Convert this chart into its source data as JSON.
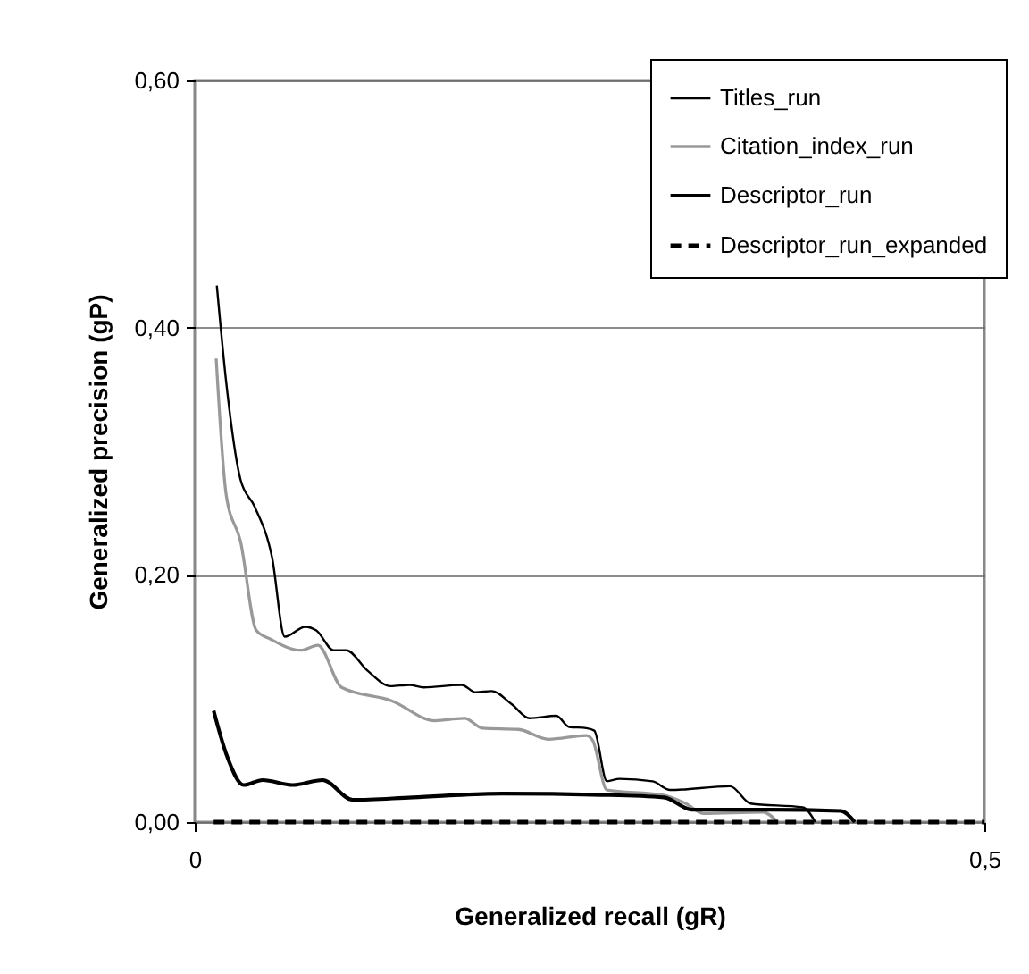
{
  "chart_data": {
    "type": "line",
    "xlabel": "Generalized recall (gR)",
    "ylabel": "Generalized precision (gP)",
    "xlim": [
      0,
      0.5
    ],
    "xticks": [
      {
        "value": 0,
        "label": "0"
      },
      {
        "value": 0.5,
        "label": "0,5"
      }
    ],
    "ylim": [
      0,
      0.6
    ],
    "yticks": [
      {
        "value": 0,
        "label": "0,00"
      },
      {
        "value": 0.2,
        "label": "0,20"
      },
      {
        "value": 0.4,
        "label": "0,40"
      },
      {
        "value": 0.6,
        "label": "0,60"
      }
    ],
    "grid": "y",
    "legend": "top right",
    "marker": "none",
    "series": [
      {
        "name": "Titles_run",
        "color": "#000000",
        "line_style": "solid",
        "x": [
          0.014,
          0.02,
          0.029,
          0.038,
          0.049,
          0.057,
          0.07,
          0.077,
          0.088,
          0.096,
          0.109,
          0.124,
          0.136,
          0.145,
          0.169,
          0.178,
          0.188,
          0.201,
          0.212,
          0.229,
          0.237,
          0.248,
          0.253,
          0.261,
          0.269,
          0.29,
          0.301,
          0.339,
          0.352,
          0.385,
          0.393
        ],
        "values": [
          0.434,
          0.355,
          0.277,
          0.255,
          0.214,
          0.15,
          0.158,
          0.155,
          0.139,
          0.139,
          0.123,
          0.11,
          0.111,
          0.109,
          0.111,
          0.105,
          0.106,
          0.095,
          0.084,
          0.086,
          0.077,
          0.076,
          0.074,
          0.033,
          0.035,
          0.033,
          0.026,
          0.029,
          0.015,
          0.012,
          0
        ]
      },
      {
        "name": "Citation_index_run",
        "color": "#999999",
        "line_style": "solid",
        "x": [
          0.0136,
          0.02,
          0.029,
          0.039,
          0.048,
          0.067,
          0.078,
          0.093,
          0.125,
          0.152,
          0.171,
          0.182,
          0.205,
          0.224,
          0.248,
          0.252,
          0.261,
          0.296,
          0.311,
          0.322,
          0.36,
          0.369
        ],
        "values": [
          0.375,
          0.264,
          0.227,
          0.155,
          0.148,
          0.139,
          0.143,
          0.109,
          0.098,
          0.082,
          0.084,
          0.076,
          0.075,
          0.067,
          0.07,
          0.066,
          0.026,
          0.022,
          0.015,
          0.007,
          0.008,
          0
        ]
      },
      {
        "name": "Descriptor_run",
        "color": "#000000",
        "line_style": "solid",
        "x": [
          0.012,
          0.02,
          0.031,
          0.043,
          0.062,
          0.081,
          0.1,
          0.138,
          0.195,
          0.258,
          0.297,
          0.315,
          0.364,
          0.409,
          0.418
        ],
        "values": [
          0.09,
          0.055,
          0.03,
          0.034,
          0.03,
          0.034,
          0.018,
          0.02,
          0.023,
          0.022,
          0.02,
          0.01,
          0.01,
          0.009,
          0
        ]
      },
      {
        "name": "Descriptor_run_expanded",
        "color": "#000000",
        "line_style": "dashed",
        "x": [
          0.012,
          0.5
        ],
        "values": [
          0,
          0
        ]
      }
    ]
  }
}
